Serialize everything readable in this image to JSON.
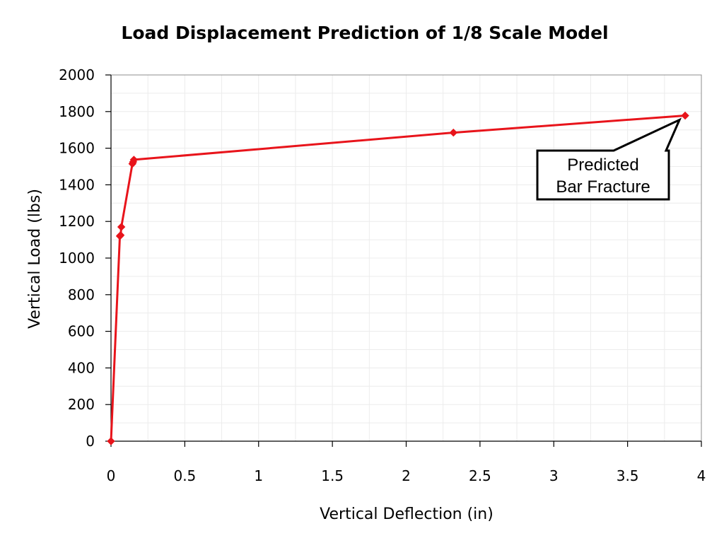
{
  "chart_data": {
    "type": "line",
    "title": "Load Displacement Prediction of 1/8 Scale Model",
    "xlabel": "Vertical Deflection (in)",
    "ylabel": "Vertical Load (lbs)",
    "xlim": [
      0,
      4
    ],
    "ylim": [
      0,
      2000
    ],
    "x_ticks": [
      0,
      0.5,
      1,
      1.5,
      2,
      2.5,
      3,
      3.5,
      4
    ],
    "x_tick_labels": [
      "0",
      "0.5",
      "1",
      "1.5",
      "2",
      "2.5",
      "3",
      "3.5",
      "4"
    ],
    "y_ticks": [
      0,
      200,
      400,
      600,
      800,
      1000,
      1200,
      1400,
      1600,
      1800,
      2000
    ],
    "y_tick_labels": [
      "0",
      "200",
      "400",
      "600",
      "800",
      "1000",
      "1200",
      "1400",
      "1600",
      "1800",
      "2000"
    ],
    "grid": true,
    "legend": "none",
    "series": [
      {
        "color": "#e8141b",
        "marker": "diamond",
        "x": [
          0,
          0.06,
          0.065,
          0.07,
          0.145,
          0.15,
          0.155,
          2.32,
          3.89
        ],
        "y": [
          0,
          1120,
          1125,
          1170,
          1515,
          1525,
          1537,
          1685,
          1778
        ]
      }
    ],
    "annotation": {
      "line1": "Predicted",
      "line2": "Bar Fracture",
      "points_to": {
        "x": 3.89,
        "y": 1778
      }
    }
  }
}
